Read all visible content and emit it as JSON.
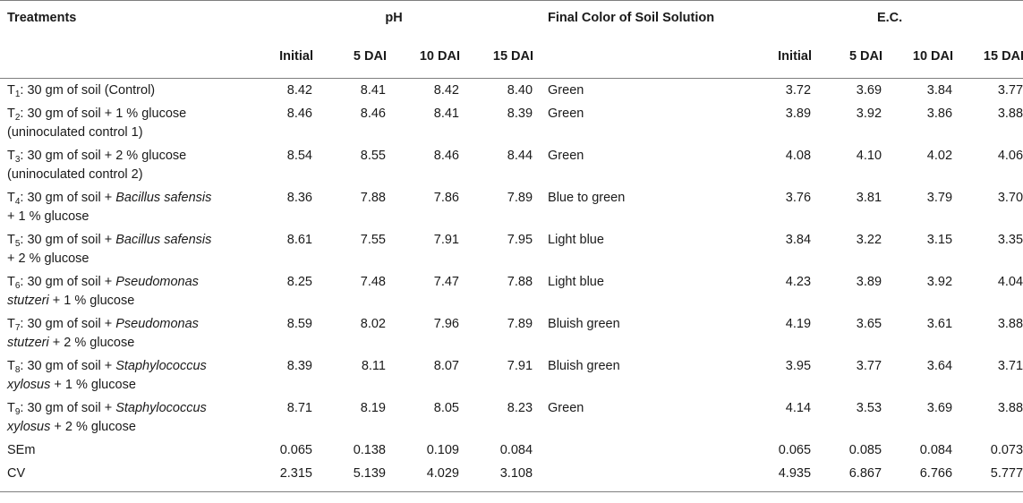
{
  "header": {
    "treatments": "Treatments",
    "ph": "pH",
    "final_color": "Final Color of Soil Solution",
    "ec": "E.C.",
    "ph_sub": [
      "Initial",
      "5 DAI",
      "10 DAI",
      "15 DAI"
    ],
    "ec_sub": [
      "Initial",
      "5 DAI",
      "10 DAI",
      "15 DAI"
    ]
  },
  "rows": [
    {
      "t": "T",
      "n": "1",
      "line1_pre": ": 30 gm of soil (Control)",
      "line1_species": "",
      "line1_post": "",
      "line2_species": "",
      "line2_post": "",
      "ph": [
        "8.42",
        "8.41",
        "8.42",
        "8.40"
      ],
      "color": "Green",
      "ec": [
        "3.72",
        "3.69",
        "3.84",
        "3.77"
      ]
    },
    {
      "t": "T",
      "n": "2",
      "line1_pre": ": 30 gm of soil + 1 % glucose",
      "line1_species": "",
      "line1_post": "",
      "line2_species": "",
      "line2_post": "(uninoculated control 1)",
      "ph": [
        "8.46",
        "8.46",
        "8.41",
        "8.39"
      ],
      "color": "Green",
      "ec": [
        "3.89",
        "3.92",
        "3.86",
        "3.88"
      ]
    },
    {
      "t": "T",
      "n": "3",
      "line1_pre": ": 30 gm of soil + 2 % glucose",
      "line1_species": "",
      "line1_post": "",
      "line2_species": "",
      "line2_post": "(uninoculated control 2)",
      "ph": [
        "8.54",
        "8.55",
        "8.46",
        "8.44"
      ],
      "color": "Green",
      "ec": [
        "4.08",
        "4.10",
        "4.02",
        "4.06"
      ]
    },
    {
      "t": "T",
      "n": "4",
      "line1_pre": ": 30 gm of soil + ",
      "line1_species": "Bacillus safensis",
      "line1_post": "",
      "line2_species": "",
      "line2_post": "+ 1 % glucose",
      "ph": [
        "8.36",
        "7.88",
        "7.86",
        "7.89"
      ],
      "color": "Blue to green",
      "ec": [
        "3.76",
        "3.81",
        "3.79",
        "3.70"
      ]
    },
    {
      "t": "T",
      "n": "5",
      "line1_pre": ": 30 gm of soil + ",
      "line1_species": "Bacillus safensis",
      "line1_post": "",
      "line2_species": "",
      "line2_post": "+ 2 % glucose",
      "ph": [
        "8.61",
        "7.55",
        "7.91",
        "7.95"
      ],
      "color": "Light blue",
      "ec": [
        "3.84",
        "3.22",
        "3.15",
        "3.35"
      ]
    },
    {
      "t": "T",
      "n": "6",
      "line1_pre": ": 30 gm of soil + ",
      "line1_species": "Pseudomonas",
      "line1_post": "",
      "line2_species": "stutzeri",
      "line2_post": " + 1 % glucose",
      "ph": [
        "8.25",
        "7.48",
        "7.47",
        "7.88"
      ],
      "color": "Light blue",
      "ec": [
        "4.23",
        "3.89",
        "3.92",
        "4.04"
      ]
    },
    {
      "t": "T",
      "n": "7",
      "line1_pre": ": 30 gm of soil + ",
      "line1_species": "Pseudomonas",
      "line1_post": "",
      "line2_species": "stutzeri",
      "line2_post": " + 2 % glucose",
      "ph": [
        "8.59",
        "8.02",
        "7.96",
        "7.89"
      ],
      "color": "Bluish green",
      "ec": [
        "4.19",
        "3.65",
        "3.61",
        "3.88"
      ]
    },
    {
      "t": "T",
      "n": "8",
      "line1_pre": ": 30 gm of soil + ",
      "line1_species": "Staphylococcus",
      "line1_post": "",
      "line2_species": "xylosus",
      "line2_post": " + 1 % glucose",
      "ph": [
        "8.39",
        "8.11",
        "8.07",
        "7.91"
      ],
      "color": "Bluish green",
      "ec": [
        "3.95",
        "3.77",
        "3.64",
        "3.71"
      ]
    },
    {
      "t": "T",
      "n": "9",
      "line1_pre": ": 30 gm of soil + ",
      "line1_species": "Staphylococcus",
      "line1_post": "",
      "line2_species": "xylosus",
      "line2_post": " + 2 % glucose",
      "ph": [
        "8.71",
        "8.19",
        "8.05",
        "8.23"
      ],
      "color": "Green",
      "ec": [
        "4.14",
        "3.53",
        "3.69",
        "3.88"
      ]
    }
  ],
  "stats": [
    {
      "label": "SEm",
      "ph": [
        "0.065",
        "0.138",
        "0.109",
        "0.084"
      ],
      "ec": [
        "0.065",
        "0.085",
        "0.084",
        "0.073"
      ]
    },
    {
      "label": "CV",
      "ph": [
        "2.315",
        "5.139",
        "4.029",
        "3.108"
      ],
      "ec": [
        "4.935",
        "6.867",
        "6.766",
        "5.777"
      ]
    }
  ]
}
